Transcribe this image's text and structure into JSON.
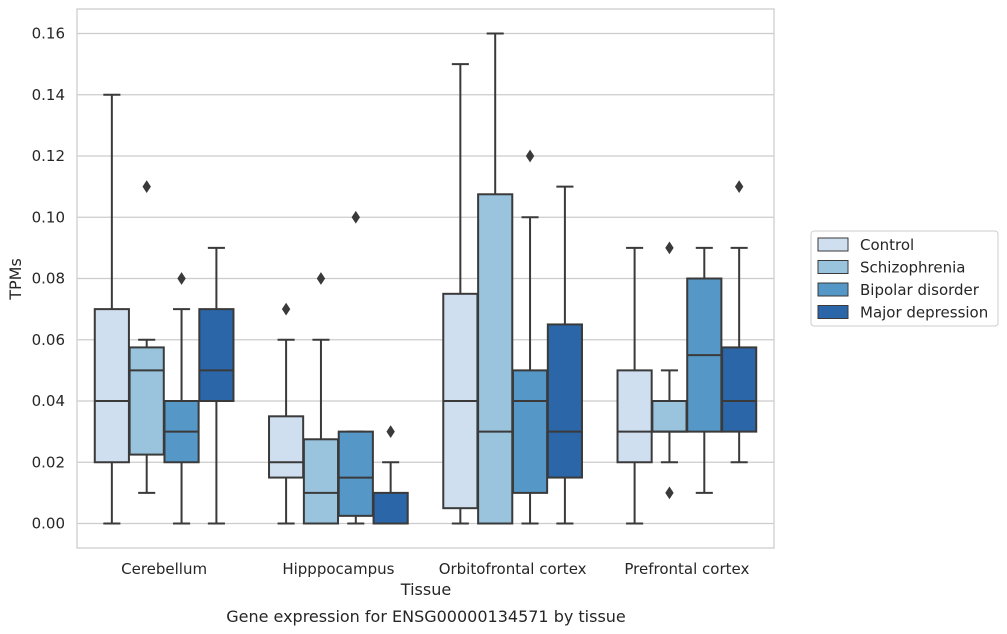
{
  "chart_data": {
    "type": "box",
    "title": "",
    "xlabel": "Tissue",
    "ylabel": "TPMs",
    "caption": "Gene expression for ENSG00000134571 by tissue",
    "categories": [
      "Cerebellum",
      "Hipppocampus",
      "Orbitofrontal cortex",
      "Prefrontal cortex"
    ],
    "ylim": [
      -0.008,
      0.168
    ],
    "yticks": [
      "0.00",
      "0.02",
      "0.04",
      "0.06",
      "0.08",
      "0.10",
      "0.12",
      "0.14",
      "0.16"
    ],
    "ytick_values": [
      0,
      0.02,
      0.04,
      0.06,
      0.08,
      0.1,
      0.12,
      0.14,
      0.16
    ],
    "grid": "horizontal",
    "legend_position": "right",
    "series": [
      {
        "name": "Control",
        "color": "#cfdff0",
        "boxes": [
          {
            "whislo": 0.0,
            "q1": 0.02,
            "med": 0.04,
            "q3": 0.07,
            "whishi": 0.14,
            "fliers": []
          },
          {
            "whislo": 0.0,
            "q1": 0.015,
            "med": 0.02,
            "q3": 0.035,
            "whishi": 0.06,
            "fliers": [
              0.07
            ]
          },
          {
            "whislo": 0.0,
            "q1": 0.005,
            "med": 0.04,
            "q3": 0.075,
            "whishi": 0.15,
            "fliers": []
          },
          {
            "whislo": 0.0,
            "q1": 0.02,
            "med": 0.03,
            "q3": 0.05,
            "whishi": 0.09,
            "fliers": []
          }
        ]
      },
      {
        "name": "Schizophrenia",
        "color": "#9ac4de",
        "boxes": [
          {
            "whislo": 0.01,
            "q1": 0.0225,
            "med": 0.05,
            "q3": 0.0575,
            "whishi": 0.06,
            "fliers": [
              0.11
            ]
          },
          {
            "whislo": 0.0,
            "q1": 0.0,
            "med": 0.01,
            "q3": 0.0275,
            "whishi": 0.06,
            "fliers": [
              0.08
            ]
          },
          {
            "whislo": 0.0,
            "q1": 0.0,
            "med": 0.03,
            "q3": 0.1075,
            "whishi": 0.16,
            "fliers": []
          },
          {
            "whislo": 0.02,
            "q1": 0.03,
            "med": 0.03,
            "q3": 0.04,
            "whishi": 0.05,
            "fliers": [
              0.01,
              0.09
            ]
          }
        ]
      },
      {
        "name": "Bipolar disorder",
        "color": "#5597c6",
        "boxes": [
          {
            "whislo": 0.0,
            "q1": 0.02,
            "med": 0.03,
            "q3": 0.04,
            "whishi": 0.07,
            "fliers": [
              0.08
            ]
          },
          {
            "whislo": 0.0,
            "q1": 0.0025,
            "med": 0.015,
            "q3": 0.03,
            "whishi": 0.03,
            "fliers": [
              0.1
            ]
          },
          {
            "whislo": 0.0,
            "q1": 0.01,
            "med": 0.04,
            "q3": 0.05,
            "whishi": 0.1,
            "fliers": [
              0.12
            ]
          },
          {
            "whislo": 0.01,
            "q1": 0.03,
            "med": 0.055,
            "q3": 0.08,
            "whishi": 0.09,
            "fliers": []
          }
        ]
      },
      {
        "name": "Major depression",
        "color": "#2a66a8",
        "boxes": [
          {
            "whislo": 0.0,
            "q1": 0.04,
            "med": 0.05,
            "q3": 0.07,
            "whishi": 0.09,
            "fliers": []
          },
          {
            "whislo": 0.0,
            "q1": 0.0,
            "med": 0.0,
            "q3": 0.01,
            "whishi": 0.02,
            "fliers": [
              0.03
            ]
          },
          {
            "whislo": 0.0,
            "q1": 0.015,
            "med": 0.03,
            "q3": 0.065,
            "whishi": 0.11,
            "fliers": []
          },
          {
            "whislo": 0.02,
            "q1": 0.03,
            "med": 0.04,
            "q3": 0.0575,
            "whishi": 0.09,
            "fliers": [
              0.11
            ]
          }
        ]
      }
    ],
    "colors": {
      "line": "#3a3a3a",
      "grid": "#cccccc",
      "frame": "#cccccc"
    }
  }
}
